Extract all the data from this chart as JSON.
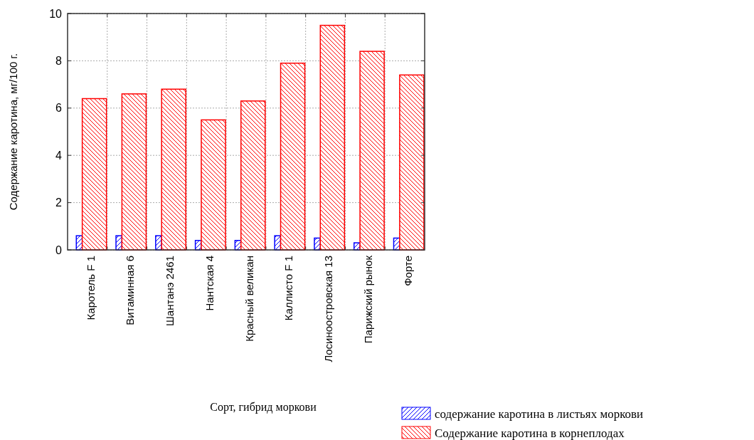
{
  "chart_data": {
    "type": "bar",
    "categories": [
      "Каротель F 1",
      "Витаминная 6",
      "Шантанэ 2461",
      "Нантская 4",
      "Красный великан",
      "Каллисто F 1",
      "Лосиноостровская 13",
      "Парижский рынок",
      "Форте"
    ],
    "series": [
      {
        "name": "содержание каротина в листьях моркови",
        "color": "#0000ff",
        "values": [
          0.6,
          0.6,
          0.6,
          0.4,
          0.4,
          0.6,
          0.5,
          0.3,
          0.5
        ]
      },
      {
        "name": "Содержание каротина в корнеплодах",
        "color": "#ff0000",
        "values": [
          6.4,
          6.6,
          6.8,
          5.5,
          6.3,
          7.9,
          9.5,
          8.4,
          7.4
        ]
      }
    ],
    "xlabel": "Сорт, гибрид моркови",
    "ylabel": "Содержание каротина, мг/100 г.",
    "ylim": [
      0,
      10
    ],
    "yticks": [
      0,
      2,
      4,
      6,
      8,
      10
    ],
    "grid": true,
    "legend": "bottom right"
  }
}
